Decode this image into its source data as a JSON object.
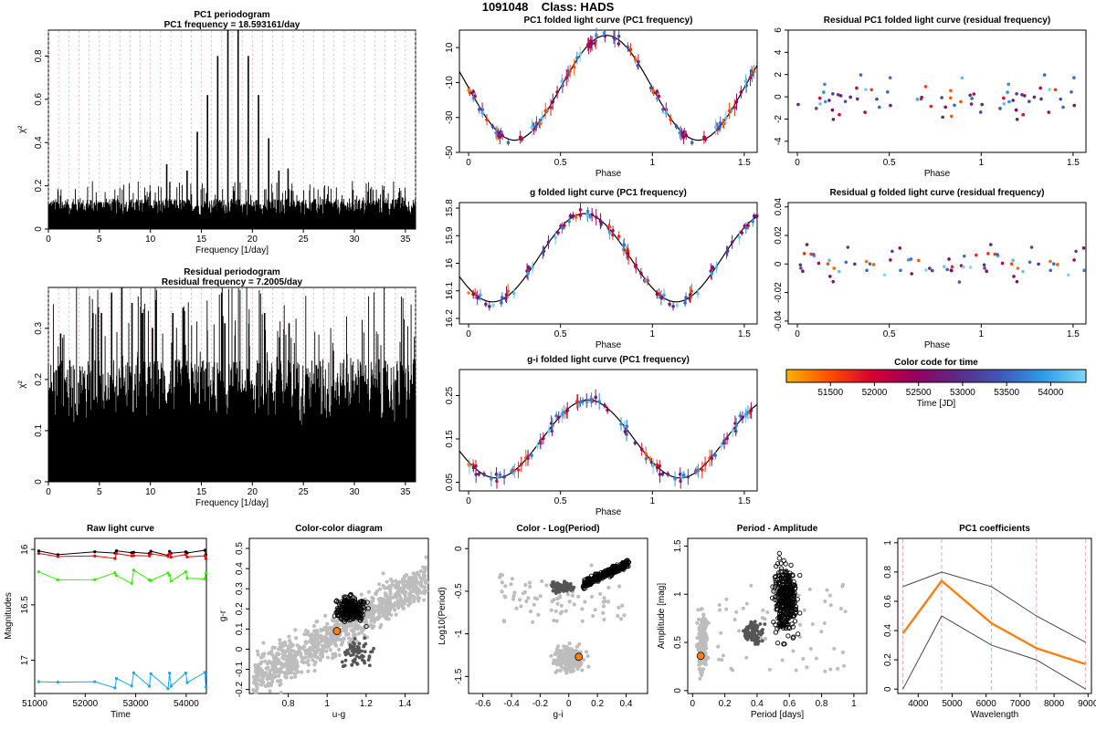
{
  "header": {
    "id": "1091048",
    "class_label": "Class: HADS"
  },
  "colors": {
    "red_line": "#ff0000",
    "green_line": "#33ee00",
    "blue_line": "#1ca5ec",
    "orange": "#ff7f0e",
    "pink_grid": "#e89aa8",
    "grey_points": "#bdbdbd",
    "dark_points": "#555555"
  },
  "chart_data": [
    {
      "id": "pc1_periodogram",
      "type": "line",
      "title": "PC1 periodogram",
      "subtitle": "PC1 frequency = 18.593161/day",
      "xlabel": "Frequency [1/day]",
      "ylabel": "χ²",
      "xlim": [
        0,
        36
      ],
      "ylim": [
        0,
        0.92
      ],
      "xticks": [
        0,
        5,
        10,
        15,
        20,
        25,
        30,
        35
      ],
      "yticks": [
        0.0,
        0.2,
        0.4,
        0.6,
        0.8
      ],
      "peaks": [
        [
          14.6,
          0.45
        ],
        [
          15.6,
          0.62
        ],
        [
          16.6,
          0.8
        ],
        [
          17.6,
          0.92
        ],
        [
          18.6,
          0.92
        ],
        [
          19.6,
          0.8
        ],
        [
          20.6,
          0.62
        ],
        [
          21.6,
          0.42
        ],
        [
          13.6,
          0.27
        ],
        [
          22.6,
          0.27
        ],
        [
          11.6,
          0.3
        ],
        [
          23.5,
          0.28
        ]
      ],
      "noise_level": 0.14
    },
    {
      "id": "residual_periodogram",
      "type": "line",
      "title": "Residual periodogram",
      "subtitle": "Residual frequency = 7.2005/day",
      "xlabel": "Frequency [1/day]",
      "ylabel": "χ²",
      "xlim": [
        0,
        36
      ],
      "ylim": [
        0,
        0.38
      ],
      "xticks": [
        0,
        5,
        10,
        15,
        20,
        25,
        30,
        35
      ],
      "yticks": [
        0.0,
        0.1,
        0.2,
        0.3
      ],
      "peaks": [
        [
          6.2,
          0.37
        ],
        [
          7.2,
          0.38
        ],
        [
          8.2,
          0.35
        ],
        [
          5.2,
          0.33
        ],
        [
          9.2,
          0.33
        ],
        [
          4.3,
          0.3
        ],
        [
          12.2,
          0.33
        ],
        [
          13.2,
          0.34
        ],
        [
          21.2,
          0.33
        ],
        [
          17.3,
          0.31
        ],
        [
          1.2,
          0.29
        ],
        [
          10.2,
          0.3
        ],
        [
          23.6,
          0.31
        ]
      ],
      "noise_level": 0.24
    },
    {
      "id": "pc1_folded",
      "type": "scatter",
      "title": "PC1 folded light curve (PC1 frequency)",
      "xlabel": "Phase",
      "ylabel": "",
      "xlim": [
        -0.05,
        1.57
      ],
      "ylim": [
        -50,
        20
      ],
      "yreverse": false,
      "xticks": [
        0,
        0.5,
        1.0,
        1.5
      ],
      "yticks": [
        -50,
        -30,
        -10,
        10
      ],
      "model": {
        "mean": -13,
        "amplitude": 30,
        "phase_of_max": 0.75
      }
    },
    {
      "id": "resid_pc1_folded",
      "type": "scatter",
      "title": "Residual PC1 folded light curve (residual frequency)",
      "xlabel": "Phase",
      "ylabel": "",
      "xlim": [
        -0.05,
        1.57
      ],
      "ylim": [
        -5,
        6
      ],
      "xticks": [
        0,
        0.5,
        1.0,
        1.5
      ],
      "yticks": [
        -4,
        -2,
        0,
        2,
        4,
        6
      ],
      "spread": 3
    },
    {
      "id": "g_folded",
      "type": "scatter",
      "title": "g folded light curve (PC1 frequency)",
      "xlabel": "Phase",
      "ylabel": "",
      "xlim": [
        -0.05,
        1.57
      ],
      "ylim": [
        16.22,
        15.78
      ],
      "yreverse": true,
      "xticks": [
        0,
        0.5,
        1.0,
        1.5
      ],
      "yticks": [
        15.8,
        15.9,
        16.0,
        16.1,
        16.2
      ],
      "model": {
        "mean": 15.98,
        "amplitude": 0.16,
        "phase_of_max": 0.13
      }
    },
    {
      "id": "resid_g_folded",
      "type": "scatter",
      "title": "Residual g folded light curve (residual frequency)",
      "xlabel": "Phase",
      "ylabel": "",
      "xlim": [
        -0.05,
        1.57
      ],
      "ylim": [
        -0.042,
        0.043
      ],
      "xticks": [
        0,
        0.5,
        1.0,
        1.5
      ],
      "yticks": [
        -0.04,
        -0.02,
        0.0,
        0.02,
        0.04
      ],
      "spread": 0.022
    },
    {
      "id": "gi_folded",
      "type": "scatter",
      "title": "g-i folded light curve (PC1 frequency)",
      "xlabel": "Phase",
      "ylabel": "",
      "xlim": [
        -0.05,
        1.57
      ],
      "ylim": [
        0.03,
        0.31
      ],
      "xticks": [
        0,
        0.5,
        1.0,
        1.5
      ],
      "yticks": [
        0.05,
        0.15,
        0.25
      ],
      "model": {
        "mean": 0.15,
        "amplitude": 0.09,
        "phase_of_max": 0.65
      }
    },
    {
      "id": "color_code",
      "type": "heatmap",
      "title": "Color code for time",
      "xlabel": "Time [JD]",
      "xlim": [
        51000,
        54400
      ],
      "xticks": [
        51500,
        52000,
        52500,
        53000,
        53500,
        54000
      ],
      "colormap": [
        "#f7b500",
        "#ff4e00",
        "#d80031",
        "#96005e",
        "#5b2b86",
        "#3f58b8",
        "#2f9ae6",
        "#7fd8f7"
      ]
    },
    {
      "id": "raw_light_curve",
      "type": "line",
      "title": "Raw light curve",
      "xlabel": "Time",
      "ylabel": "Magnitudes",
      "xlim": [
        51000,
        54400
      ],
      "ylim": [
        17.3,
        15.9
      ],
      "yreverse": true,
      "xticks": [
        51000,
        52000,
        53000,
        54000
      ],
      "yticks": [
        16.0,
        16.5,
        17.0
      ],
      "times": [
        51080,
        51460,
        52190,
        52590,
        52620,
        52920,
        52960,
        53270,
        53300,
        53640,
        53670,
        53700,
        53990,
        54020,
        54370,
        54390
      ],
      "series": [
        {
          "name": "",
          "color": "#000000",
          "offset": 16.02
        },
        {
          "name": "",
          "color": "#ff0000",
          "offset": 16.05
        },
        {
          "name": "",
          "color": "#33ee00",
          "offset": 16.2
        },
        {
          "name": "",
          "color": "#1ca5ec",
          "offset": 17.15
        }
      ]
    },
    {
      "id": "color_color",
      "type": "scatter",
      "title": "Color-color diagram",
      "xlabel": "u-g",
      "ylabel": "g-r",
      "xlim": [
        0.6,
        1.52
      ],
      "ylim": [
        -0.22,
        0.55
      ],
      "xticks": [
        0.8,
        1.0,
        1.2,
        1.4
      ],
      "yticks": [
        -0.2,
        -0.1,
        0.0,
        0.1,
        0.2,
        0.3,
        0.4,
        0.5
      ],
      "highlight": [
        1.05,
        0.09
      ]
    },
    {
      "id": "color_logperiod",
      "type": "scatter",
      "title": "Color - Log(Period)",
      "xlabel": "g-i",
      "ylabel": "Log10(Period)",
      "xlim": [
        -0.7,
        0.55
      ],
      "ylim": [
        -1.7,
        0.12
      ],
      "xticks": [
        -0.6,
        -0.4,
        -0.2,
        0.0,
        0.2,
        0.4
      ],
      "yticks": [
        -1.5,
        -1.0,
        -0.5,
        0.0
      ],
      "highlight": [
        0.07,
        -1.27
      ]
    },
    {
      "id": "period_amplitude",
      "type": "scatter",
      "title": "Period - Amplitude",
      "xlabel": "Period [days]",
      "ylabel": "Amplitude [mag]",
      "xlim": [
        -0.03,
        1.08
      ],
      "ylim": [
        -0.03,
        1.58
      ],
      "xticks": [
        0.0,
        0.2,
        0.4,
        0.6,
        0.8,
        1.0
      ],
      "yticks": [
        0.0,
        0.5,
        1.0,
        1.5
      ],
      "highlight": [
        0.05,
        0.36
      ]
    },
    {
      "id": "pc1_coefficients",
      "type": "line",
      "title": "PC1 coefficients",
      "xlabel": "Wavelength",
      "ylabel": "",
      "xlim": [
        3400,
        9100
      ],
      "ylim": [
        -0.03,
        1.03
      ],
      "xticks": [
        4000,
        5000,
        6000,
        7000,
        8000,
        9000
      ],
      "yticks": [
        0.0,
        0.2,
        0.4,
        0.6,
        0.8,
        1.0
      ],
      "x": [
        3550,
        4690,
        6160,
        7480,
        8930
      ],
      "series": [
        {
          "name": "",
          "color": "#ff7f0e",
          "values": [
            0.38,
            0.74,
            0.45,
            0.28,
            0.17
          ]
        },
        {
          "name": "",
          "color": "#444444",
          "values": [
            0.7,
            0.8,
            0.7,
            0.5,
            0.32
          ]
        },
        {
          "name": "",
          "color": "#444444",
          "values": [
            0.0,
            0.5,
            0.3,
            0.2,
            0.0
          ]
        }
      ]
    }
  ]
}
